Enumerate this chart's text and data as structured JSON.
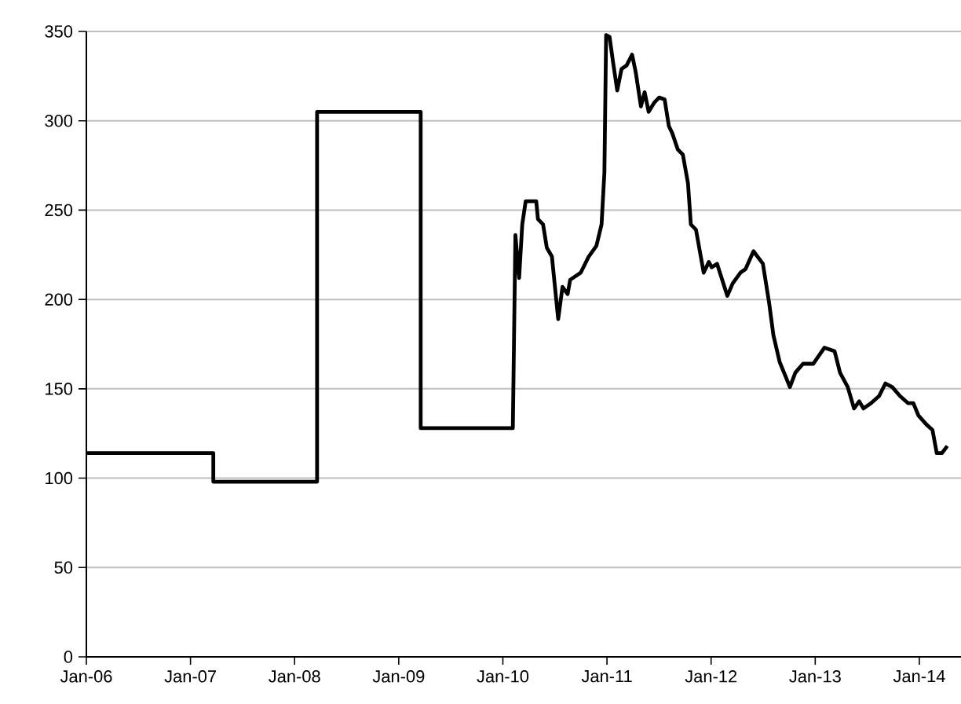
{
  "chart_data": {
    "type": "line",
    "color": "#000000",
    "line_style": "solid",
    "marker": "none",
    "grid": "y",
    "x": [
      "2006-01-01",
      "2007-03-22",
      "2007-03-22",
      "2008-03-20",
      "2008-03-20",
      "2009-03-19",
      "2009-03-19",
      "2010-02-05",
      "2010-02-14",
      "2010-02-27",
      "2010-03-10",
      "2010-03-22",
      "2010-04-28",
      "2010-05-04",
      "2010-05-22",
      "2010-06-04",
      "2010-06-22",
      "2010-07-14",
      "2010-07-29",
      "2010-08-16",
      "2010-08-25",
      "2010-10-01",
      "2010-10-29",
      "2010-11-25",
      "2010-12-13",
      "2010-12-23",
      "2010-12-29",
      "2011-01-10",
      "2011-01-23",
      "2011-02-06",
      "2011-02-21",
      "2011-03-11",
      "2011-03-30",
      "2011-04-12",
      "2011-04-30",
      "2011-05-13",
      "2011-05-27",
      "2011-06-15",
      "2011-07-03",
      "2011-07-22",
      "2011-08-06",
      "2011-08-18",
      "2011-09-06",
      "2011-09-24",
      "2011-10-12",
      "2011-10-22",
      "2011-11-09",
      "2011-12-06",
      "2011-12-24",
      "2012-01-03",
      "2012-01-22",
      "2012-02-27",
      "2012-03-17",
      "2012-04-13",
      "2012-05-01",
      "2012-05-29",
      "2012-07-01",
      "2012-07-23",
      "2012-08-07",
      "2012-08-29",
      "2012-09-16",
      "2012-10-04",
      "2012-10-23",
      "2012-11-19",
      "2012-12-25",
      "2013-02-02",
      "2013-03-10",
      "2013-03-29",
      "2013-04-25",
      "2013-05-17",
      "2013-06-04",
      "2013-06-19",
      "2013-07-16",
      "2013-08-13",
      "2013-09-04",
      "2013-09-28",
      "2013-10-25",
      "2013-11-22",
      "2013-12-11",
      "2013-12-29",
      "2014-01-26",
      "2014-02-16",
      "2014-03-03",
      "2014-03-21",
      "2014-04-09"
    ],
    "values": [
      114,
      114,
      98,
      98,
      305,
      305,
      128,
      128,
      236,
      212,
      242,
      255,
      255,
      245,
      242,
      229,
      224,
      189,
      207,
      203,
      211,
      215,
      224,
      230,
      242,
      271,
      348,
      347,
      332,
      317,
      329,
      331,
      337,
      327,
      308,
      316,
      305,
      310,
      313,
      312,
      297,
      293,
      284,
      281,
      265,
      242,
      239,
      215,
      221,
      218,
      220,
      202,
      209,
      215,
      217,
      227,
      220,
      198,
      180,
      165,
      158,
      151,
      159,
      164,
      164,
      173,
      171,
      159,
      151,
      139,
      143,
      139,
      142,
      146,
      153,
      151,
      146,
      142,
      142,
      135,
      130,
      127,
      114,
      114,
      118
    ],
    "xlim": [
      "2006-01-01",
      "2014-05-27"
    ],
    "xticks": [
      {
        "value": "2006-01-01",
        "label": "Jan-06"
      },
      {
        "value": "2007-01-01",
        "label": "Jan-07"
      },
      {
        "value": "2008-01-01",
        "label": "Jan-08"
      },
      {
        "value": "2009-01-01",
        "label": "Jan-09"
      },
      {
        "value": "2010-01-01",
        "label": "Jan-10"
      },
      {
        "value": "2011-01-01",
        "label": "Jan-11"
      },
      {
        "value": "2012-01-01",
        "label": "Jan-12"
      },
      {
        "value": "2013-01-01",
        "label": "Jan-13"
      },
      {
        "value": "2014-01-01",
        "label": "Jan-14"
      }
    ],
    "ylim": [
      0,
      350
    ],
    "yticks": [
      0,
      50,
      100,
      150,
      200,
      250,
      300,
      350
    ]
  }
}
